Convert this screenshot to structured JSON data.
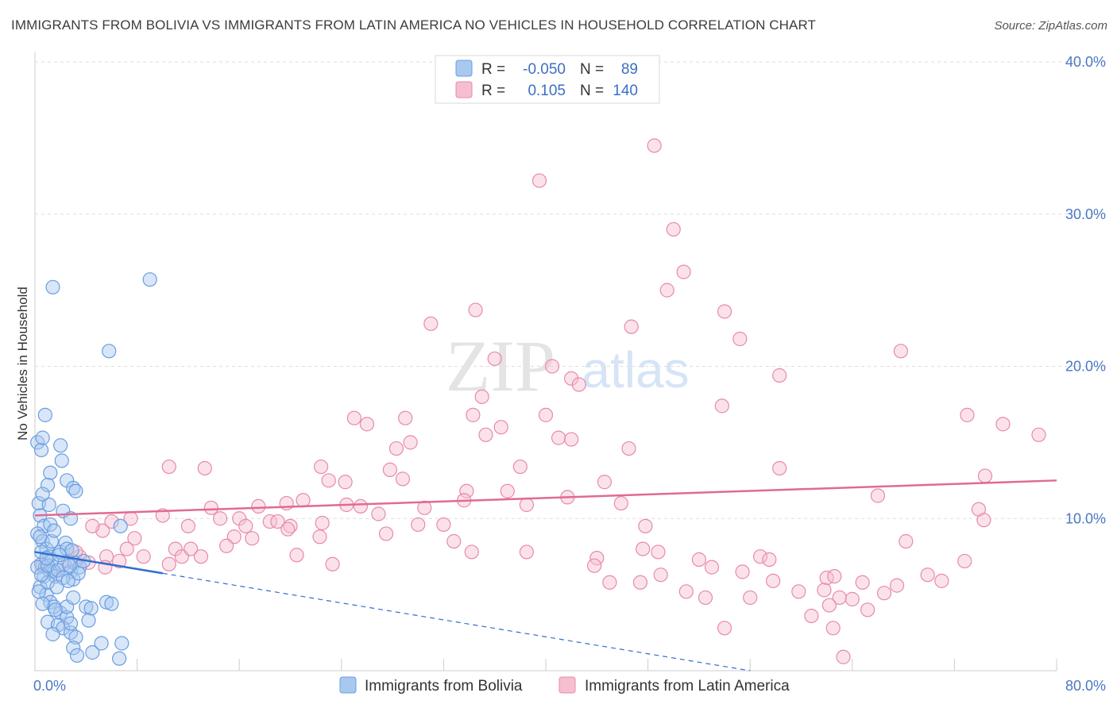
{
  "title": "IMMIGRANTS FROM BOLIVIA VS IMMIGRANTS FROM LATIN AMERICA NO VEHICLES IN HOUSEHOLD CORRELATION CHART",
  "source": "Source: ZipAtlas.com",
  "watermark": {
    "zip": "ZIP",
    "atlas": "atlas"
  },
  "legend_top": [
    {
      "r_label": "R =",
      "r_value": "-0.050",
      "n_label": "N =",
      "n_value": "89"
    },
    {
      "r_label": "R =",
      "r_value": "0.105",
      "n_label": "N =",
      "n_value": "140"
    }
  ],
  "legend_bottom": [
    "Immigrants from Bolivia",
    "Immigrants from Latin America"
  ],
  "colors": {
    "blue_fill": "#a8c8f0",
    "blue_stroke": "#6a9ee0",
    "blue_line": "#2f6fd0",
    "pink_fill": "#f6bfd0",
    "pink_stroke": "#e88aa8",
    "pink_line": "#e06a95",
    "grid": "#dddddd",
    "tick_label": "#4a77c4"
  },
  "chart_data": {
    "type": "scatter",
    "title": "IMMIGRANTS FROM BOLIVIA VS IMMIGRANTS FROM LATIN AMERICA NO VEHICLES IN HOUSEHOLD CORRELATION CHART",
    "xlabel": "",
    "ylabel": "No Vehicles in Household",
    "xlim": [
      0,
      80
    ],
    "ylim": [
      0,
      40
    ],
    "x_tick_labels": [
      "0.0%",
      "80.0%"
    ],
    "y_ticks": [
      10,
      20,
      30,
      40
    ],
    "y_tick_labels": [
      "10.0%",
      "20.0%",
      "30.0%",
      "40.0%"
    ],
    "grid": true,
    "legend_position": "top-center",
    "series": [
      {
        "name": "Immigrants from Bolivia",
        "R": -0.05,
        "N": 89,
        "trend_solid": [
          [
            0,
            7.8
          ],
          [
            10,
            6.4
          ]
        ],
        "trend_dashed": [
          [
            10,
            6.4
          ],
          [
            56,
            0
          ]
        ],
        "points": [
          [
            0.2,
            15
          ],
          [
            0.5,
            14.5
          ],
          [
            0.6,
            15.3
          ],
          [
            0.8,
            16.8
          ],
          [
            1.4,
            25.2
          ],
          [
            1.5,
            6.5
          ],
          [
            0.3,
            11
          ],
          [
            0.4,
            10.2
          ],
          [
            0.7,
            9.5
          ],
          [
            0.2,
            9
          ],
          [
            0.6,
            8.5
          ],
          [
            0.9,
            8
          ],
          [
            1.1,
            7.5
          ],
          [
            1.3,
            7.2
          ],
          [
            0.5,
            7
          ],
          [
            0.8,
            6.8
          ],
          [
            1.2,
            6.5
          ],
          [
            1.6,
            6.2
          ],
          [
            2,
            7.8
          ],
          [
            2.3,
            7
          ],
          [
            2.8,
            6.5
          ],
          [
            3,
            6
          ],
          [
            0.4,
            5.5
          ],
          [
            0.9,
            5
          ],
          [
            1.2,
            4.5
          ],
          [
            1.5,
            4.2
          ],
          [
            2,
            3.8
          ],
          [
            2.5,
            3.5
          ],
          [
            1,
            3.2
          ],
          [
            1.8,
            3
          ],
          [
            2.2,
            2.8
          ],
          [
            2.8,
            2.5
          ],
          [
            3.2,
            2.2
          ],
          [
            3,
            1.5
          ],
          [
            3.3,
            1
          ],
          [
            4.5,
            1.2
          ],
          [
            5.2,
            1.8
          ],
          [
            6.6,
            0.8
          ],
          [
            6.8,
            1.8
          ],
          [
            5.6,
            4.5
          ],
          [
            5.8,
            21
          ],
          [
            9,
            25.7
          ],
          [
            1.2,
            13
          ],
          [
            2,
            14.8
          ],
          [
            2.1,
            13.8
          ],
          [
            2.5,
            12.5
          ],
          [
            3,
            12
          ],
          [
            3.2,
            11.8
          ],
          [
            1,
            12.2
          ],
          [
            2.2,
            10.5
          ],
          [
            2.8,
            10
          ],
          [
            6.7,
            9.5
          ],
          [
            1.2,
            9.6
          ],
          [
            2.4,
            8.4
          ],
          [
            2.5,
            8
          ],
          [
            0.5,
            7.8
          ],
          [
            1.3,
            8.5
          ],
          [
            0.7,
            6.2
          ],
          [
            1,
            5.8
          ],
          [
            2.5,
            4.2
          ],
          [
            3,
            4.8
          ],
          [
            4,
            4.2
          ],
          [
            0.2,
            6.8
          ],
          [
            0.5,
            6.3
          ],
          [
            1,
            6.9
          ],
          [
            1.8,
            6.6
          ],
          [
            2.2,
            6.1
          ],
          [
            3.1,
            7.1
          ],
          [
            3.5,
            6.8
          ],
          [
            1.6,
            4
          ],
          [
            2.8,
            3.1
          ],
          [
            4.4,
            4.1
          ],
          [
            1.4,
            2.4
          ],
          [
            0.6,
            4.4
          ],
          [
            0.3,
            5.2
          ],
          [
            1.7,
            5.5
          ],
          [
            2.6,
            5.9
          ],
          [
            3.4,
            6.4
          ],
          [
            0.9,
            7.4
          ],
          [
            1.9,
            7.6
          ],
          [
            2.9,
            7.9
          ],
          [
            0.4,
            8.8
          ],
          [
            1.5,
            9.2
          ],
          [
            2.7,
            6.9
          ],
          [
            3.8,
            7.2
          ],
          [
            6,
            4.4
          ],
          [
            4.2,
            3.3
          ],
          [
            1.1,
            10.9
          ],
          [
            0.6,
            11.6
          ]
        ]
      },
      {
        "name": "Immigrants from Latin America",
        "R": 0.105,
        "N": 140,
        "trend_solid": [
          [
            0,
            10.2
          ],
          [
            80,
            12.5
          ]
        ],
        "points": [
          [
            48.5,
            34.5
          ],
          [
            39.5,
            32.2
          ],
          [
            50,
            29
          ],
          [
            50.8,
            26.2
          ],
          [
            49.5,
            25
          ],
          [
            34.5,
            23.7
          ],
          [
            31,
            22.8
          ],
          [
            46.7,
            22.6
          ],
          [
            54,
            23.6
          ],
          [
            55.2,
            21.8
          ],
          [
            67.8,
            21
          ],
          [
            36,
            20.5
          ],
          [
            40.5,
            20
          ],
          [
            42,
            19.2
          ],
          [
            42.6,
            18.8
          ],
          [
            58.3,
            19.4
          ],
          [
            35,
            18
          ],
          [
            53.8,
            17.4
          ],
          [
            25,
            16.6
          ],
          [
            29,
            16.6
          ],
          [
            34.3,
            16.8
          ],
          [
            40,
            16.8
          ],
          [
            26,
            16.2
          ],
          [
            36.5,
            16
          ],
          [
            35.3,
            15.5
          ],
          [
            41,
            15.3
          ],
          [
            42,
            15.2
          ],
          [
            29.4,
            15
          ],
          [
            28.3,
            14.6
          ],
          [
            46.5,
            14.6
          ],
          [
            73,
            16.8
          ],
          [
            75.8,
            16.2
          ],
          [
            78.6,
            15.5
          ],
          [
            10.5,
            13.4
          ],
          [
            13.3,
            13.3
          ],
          [
            22.4,
            13.4
          ],
          [
            27.8,
            13.2
          ],
          [
            38,
            13.4
          ],
          [
            58.3,
            13.3
          ],
          [
            74.4,
            12.8
          ],
          [
            23,
            12.5
          ],
          [
            24.3,
            12.4
          ],
          [
            28.8,
            12.6
          ],
          [
            44.6,
            12.4
          ],
          [
            33.8,
            11.8
          ],
          [
            37,
            11.8
          ],
          [
            33.6,
            11.2
          ],
          [
            41.7,
            11.4
          ],
          [
            66,
            11.5
          ],
          [
            19.7,
            11
          ],
          [
            21,
            11.2
          ],
          [
            17.5,
            10.8
          ],
          [
            13.8,
            10.7
          ],
          [
            24.4,
            10.9
          ],
          [
            25.5,
            10.8
          ],
          [
            30.5,
            10.7
          ],
          [
            38.5,
            10.9
          ],
          [
            45.9,
            11
          ],
          [
            73.9,
            10.6
          ],
          [
            10,
            10.2
          ],
          [
            14.5,
            10
          ],
          [
            16,
            10
          ],
          [
            18.4,
            9.8
          ],
          [
            26.9,
            10.3
          ],
          [
            7.5,
            10
          ],
          [
            5.3,
            9.2
          ],
          [
            12,
            9.5
          ],
          [
            16.5,
            9.5
          ],
          [
            19,
            9.8
          ],
          [
            20,
            9.5
          ],
          [
            22.5,
            9.7
          ],
          [
            30,
            9.6
          ],
          [
            32,
            9.6
          ],
          [
            47.8,
            9.5
          ],
          [
            74.3,
            9.9
          ],
          [
            7.8,
            8.7
          ],
          [
            15.6,
            8.8
          ],
          [
            17,
            8.7
          ],
          [
            19.8,
            9.3
          ],
          [
            27.5,
            9
          ],
          [
            32.8,
            8.5
          ],
          [
            22.3,
            8.8
          ],
          [
            5.6,
            7.5
          ],
          [
            6.6,
            7.2
          ],
          [
            7.2,
            8
          ],
          [
            8.5,
            7.5
          ],
          [
            10.5,
            7
          ],
          [
            11,
            8
          ],
          [
            11.5,
            7.5
          ],
          [
            12.2,
            8
          ],
          [
            13,
            7.5
          ],
          [
            15,
            8.2
          ],
          [
            20.5,
            7.6
          ],
          [
            23.3,
            7
          ],
          [
            34.2,
            7.8
          ],
          [
            38.5,
            7.8
          ],
          [
            44,
            7.4
          ],
          [
            47.6,
            8
          ],
          [
            48.8,
            7.8
          ],
          [
            52,
            7.3
          ],
          [
            56.8,
            7.5
          ],
          [
            57.5,
            7.3
          ],
          [
            68.2,
            8.5
          ],
          [
            72.8,
            7.2
          ],
          [
            43.8,
            6.9
          ],
          [
            53,
            6.8
          ],
          [
            55.4,
            6.5
          ],
          [
            62,
            6.1
          ],
          [
            62.6,
            6.2
          ],
          [
            69.9,
            6.3
          ],
          [
            71,
            5.9
          ],
          [
            45,
            5.8
          ],
          [
            47.4,
            5.8
          ],
          [
            49,
            6.3
          ],
          [
            57.8,
            5.9
          ],
          [
            64.8,
            5.8
          ],
          [
            66.5,
            5.1
          ],
          [
            67.5,
            5.6
          ],
          [
            51,
            5.2
          ],
          [
            52.5,
            4.8
          ],
          [
            56,
            4.8
          ],
          [
            59.8,
            5.2
          ],
          [
            61.8,
            5.3
          ],
          [
            63,
            4.8
          ],
          [
            60.8,
            3.6
          ],
          [
            62.2,
            4.3
          ],
          [
            64,
            4.7
          ],
          [
            65.2,
            4
          ],
          [
            54,
            2.8
          ],
          [
            62.5,
            2.8
          ],
          [
            63.3,
            0.9
          ],
          [
            3.5,
            7.5
          ],
          [
            5.5,
            6.8
          ],
          [
            4.5,
            9.5
          ],
          [
            6,
            9.8
          ],
          [
            2.6,
            7.2
          ],
          [
            1.8,
            6.6
          ],
          [
            3.2,
            7.8
          ],
          [
            4.2,
            7.1
          ],
          [
            0.6,
            6.9
          ]
        ]
      }
    ]
  }
}
